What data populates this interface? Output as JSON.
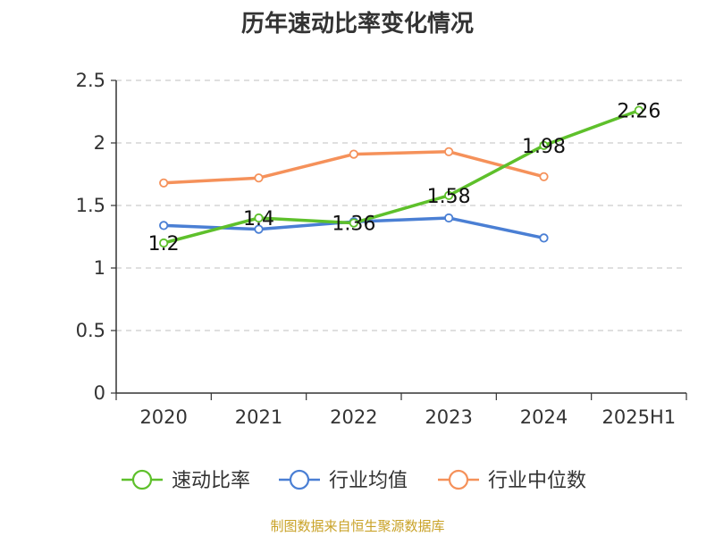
{
  "chart_data": {
    "type": "line",
    "title": "历年速动比率变化情况",
    "categories": [
      "2020",
      "2021",
      "2022",
      "2023",
      "2024",
      "2025H1"
    ],
    "y_ticks": [
      "0",
      "0.5",
      "1",
      "1.5",
      "2",
      "2.5"
    ],
    "ylim": [
      0,
      2.5
    ],
    "grid": true,
    "legend_position": "bottom",
    "series": [
      {
        "name": "速动比率",
        "color": "#5ec02b",
        "values": [
          1.2,
          1.4,
          1.36,
          1.58,
          1.98,
          2.26
        ],
        "labels": [
          "1.2",
          "1.4",
          "1.36",
          "1.58",
          "1.98",
          "2.26"
        ]
      },
      {
        "name": "行业均值",
        "color": "#4a7fd4",
        "values": [
          1.34,
          1.31,
          1.37,
          1.4,
          1.24,
          null
        ]
      },
      {
        "name": "行业中位数",
        "color": "#f5915a",
        "values": [
          1.68,
          1.72,
          1.91,
          1.93,
          1.73,
          null
        ]
      }
    ],
    "source": "制图数据来自恒生聚源数据库"
  }
}
